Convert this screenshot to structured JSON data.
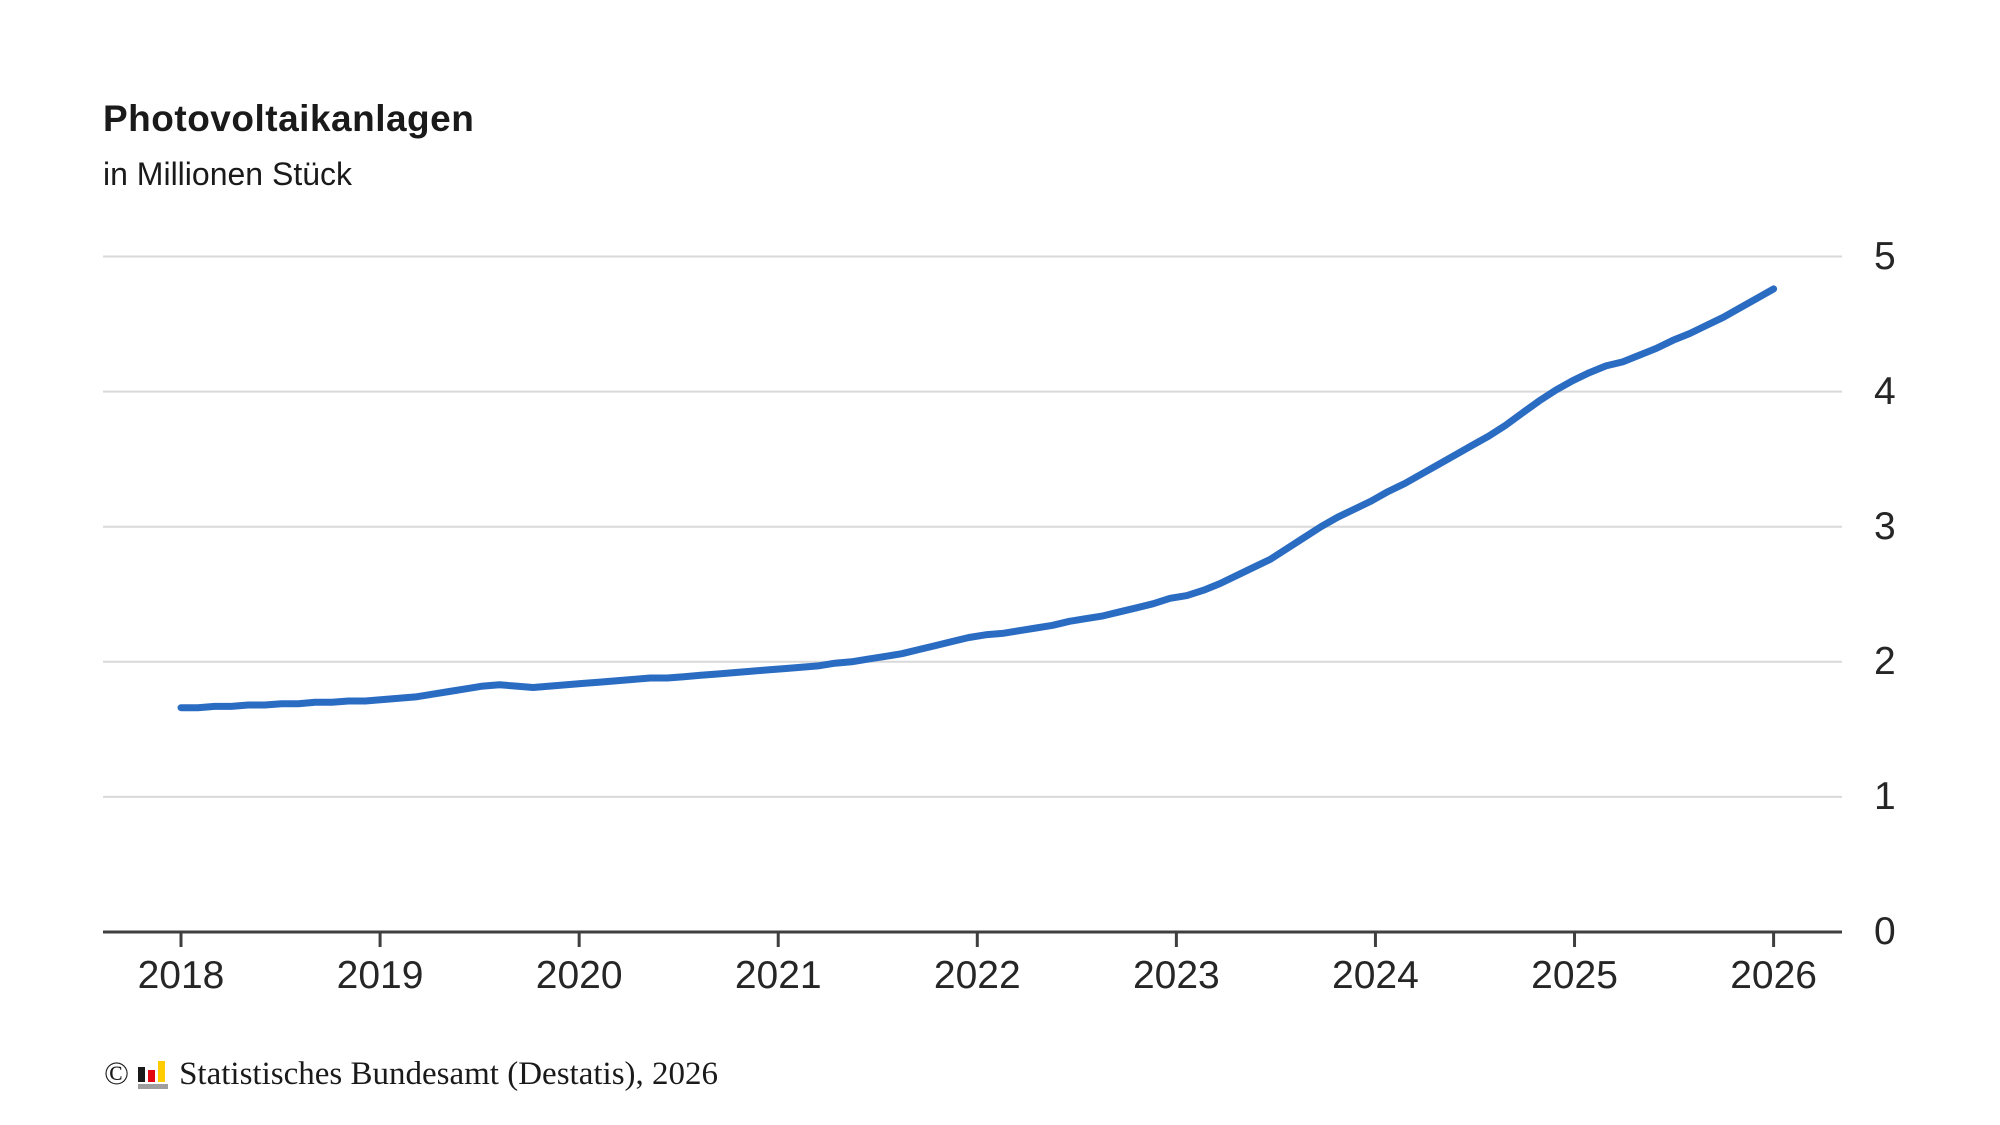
{
  "chart_data": {
    "type": "line",
    "title": "Photovoltaikanlagen",
    "subtitle": "in Millionen Stück",
    "unit": "Millionen Stück",
    "x": "monthly values from 2018-01 to 2025-12",
    "x_tick_labels": [
      "2018",
      "2019",
      "2020",
      "2021",
      "2022",
      "2023",
      "2024",
      "2025",
      "2026"
    ],
    "y_tick_labels": [
      "0",
      "1",
      "2",
      "3",
      "4",
      "5"
    ],
    "ylim": [
      0,
      5
    ],
    "grid": "horizontal gridlines at integer values, y labels on right side, x ticks below axis",
    "legend": "none",
    "series": [
      {
        "name": "Photovoltaikanlagen (Millionen Stück)",
        "color": "#2b6cc3",
        "values": [
          1.66,
          1.66,
          1.67,
          1.67,
          1.68,
          1.68,
          1.69,
          1.69,
          1.7,
          1.7,
          1.71,
          1.71,
          1.72,
          1.73,
          1.74,
          1.76,
          1.78,
          1.8,
          1.82,
          1.83,
          1.82,
          1.81,
          1.82,
          1.83,
          1.84,
          1.85,
          1.86,
          1.87,
          1.88,
          1.88,
          1.89,
          1.9,
          1.91,
          1.92,
          1.93,
          1.94,
          1.95,
          1.96,
          1.97,
          1.99,
          2.0,
          2.02,
          2.04,
          2.06,
          2.09,
          2.12,
          2.15,
          2.18,
          2.2,
          2.21,
          2.23,
          2.25,
          2.27,
          2.3,
          2.32,
          2.34,
          2.37,
          2.4,
          2.43,
          2.47,
          2.49,
          2.53,
          2.58,
          2.64,
          2.7,
          2.76,
          2.84,
          2.92,
          3.0,
          3.07,
          3.13,
          3.19,
          3.26,
          3.32,
          3.39,
          3.46,
          3.53,
          3.6,
          3.67,
          3.75,
          3.84,
          3.93,
          4.01,
          4.08,
          4.14,
          4.19,
          4.22,
          4.27,
          4.32,
          4.38,
          4.43,
          4.49,
          4.55,
          4.62,
          4.69,
          4.76
        ]
      }
    ]
  },
  "colors": {
    "line": "#2b6cc3",
    "gridline": "#d9d9d9",
    "axis": "#3f3f3f",
    "label_text": "#262626",
    "title_text": "#1a1a1a"
  },
  "footer": {
    "copyright_symbol": "©",
    "source": "Statistisches Bundesamt (Destatis), 2026",
    "logo": "destatis-bar-chart-logo",
    "logo_colors": {
      "black": "#1a1a1a",
      "red": "#e30613",
      "gold": "#ffcc00",
      "base": "#9e9e9e"
    }
  }
}
